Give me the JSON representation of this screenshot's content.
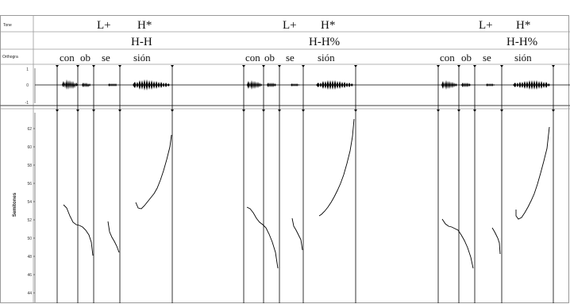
{
  "tiers": {
    "tone_label": "Tone",
    "ortho_label": "Orthogra",
    "pitch_axis_label": "Semitones",
    "wave_ticks": [
      "1",
      "0",
      "-1"
    ]
  },
  "pitch_ticks": [
    "62",
    "60",
    "58",
    "56",
    "54",
    "52",
    "50",
    "48",
    "46",
    "44"
  ],
  "panels": [
    {
      "tone_top": [
        {
          "text": "L+"
        },
        {
          "text": "H*"
        }
      ],
      "tone_bottom": "H-H",
      "syllables": [
        "con",
        "ob",
        "se",
        "sión"
      ]
    },
    {
      "tone_top": [
        {
          "text": "L+"
        },
        {
          "text": "H*"
        }
      ],
      "tone_bottom": "H-H%",
      "syllables": [
        "con",
        "ob",
        "se",
        "sión"
      ]
    },
    {
      "tone_top": [
        {
          "text": "L+"
        },
        {
          "text": "H*"
        }
      ],
      "tone_bottom": "H-H%",
      "syllables": [
        "con",
        "ob",
        "se",
        "sión"
      ]
    }
  ],
  "colors": {
    "line": "#000000",
    "frame": "#9a9a9a",
    "background": "#ffffff"
  }
}
